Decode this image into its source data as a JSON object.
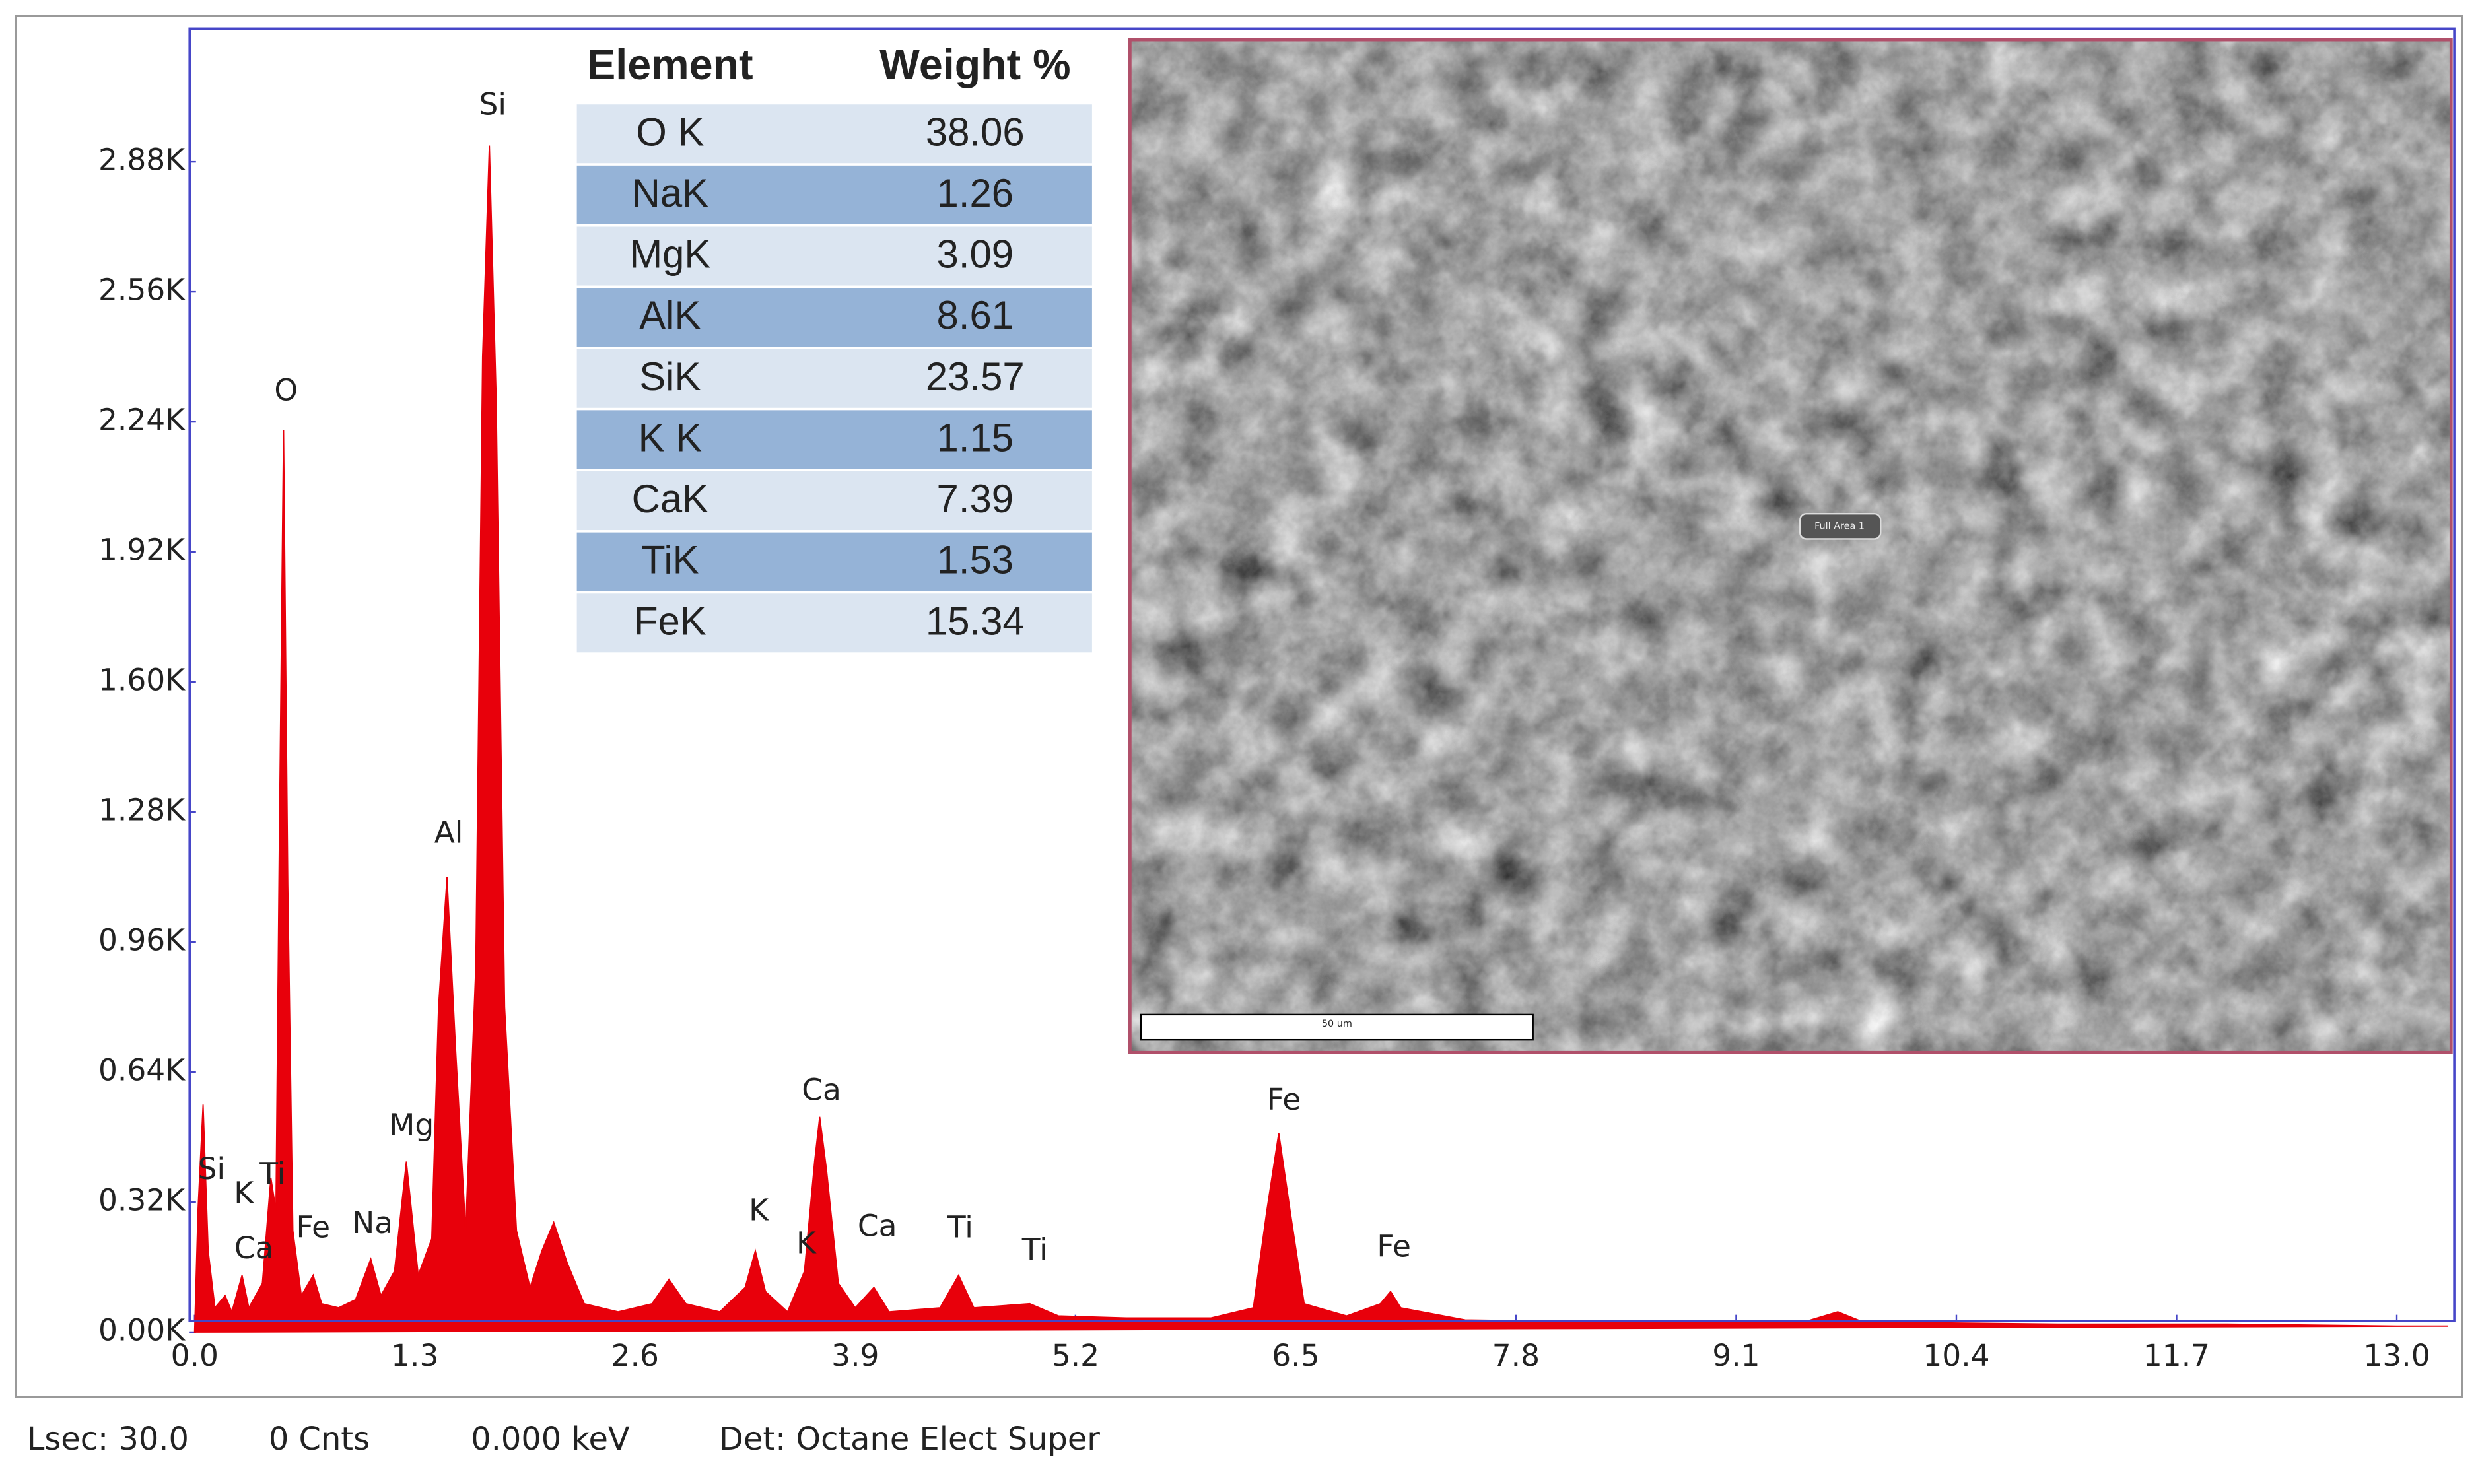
{
  "chart_data": {
    "type": "area",
    "x": [
      0,
      0.02,
      0.05,
      0.08,
      0.12,
      0.18,
      0.22,
      0.28,
      0.32,
      0.4,
      0.45,
      0.48,
      0.5,
      0.525,
      0.55,
      0.58,
      0.63,
      0.7,
      0.75,
      0.85,
      0.95,
      1.04,
      1.1,
      1.18,
      1.25,
      1.32,
      1.4,
      1.44,
      1.49,
      1.54,
      1.6,
      1.66,
      1.7,
      1.74,
      1.78,
      1.83,
      1.9,
      1.98,
      2.05,
      2.12,
      2.2,
      2.3,
      2.5,
      2.7,
      2.8,
      2.9,
      3.1,
      3.25,
      3.31,
      3.37,
      3.5,
      3.6,
      3.66,
      3.69,
      3.73,
      3.8,
      3.9,
      4.01,
      4.1,
      4.4,
      4.51,
      4.6,
      4.93,
      5.1,
      5.5,
      6,
      6.25,
      6.33,
      6.4,
      6.47,
      6.55,
      6.8,
      7,
      7.06,
      7.12,
      7.5,
      8.5,
      9.5,
      9.7,
      9.85,
      11,
      12,
      13,
      13.3
    ],
    "values": [
      0,
      300,
      560,
      200,
      60,
      90,
      50,
      140,
      60,
      120,
      380,
      300,
      1200,
      2220,
      1100,
      250,
      90,
      140,
      70,
      60,
      80,
      180,
      90,
      150,
      420,
      140,
      230,
      800,
      1120,
      700,
      250,
      900,
      2400,
      2920,
      2300,
      800,
      250,
      110,
      200,
      270,
      170,
      70,
      50,
      70,
      130,
      70,
      50,
      110,
      200,
      100,
      50,
      150,
      420,
      530,
      400,
      120,
      60,
      110,
      50,
      60,
      140,
      60,
      70,
      40,
      35,
      35,
      60,
      300,
      490,
      290,
      70,
      40,
      70,
      100,
      60,
      30,
      25,
      25,
      50,
      25,
      20,
      20,
      15,
      15
    ],
    "color": "#e8000b",
    "xlim": [
      -0.02,
      13.33
    ],
    "ylim": [
      0,
      3200
    ],
    "xticks": [
      {
        "value": 0,
        "label": "0.0"
      },
      1.3,
      2.6,
      3.9,
      5.2,
      6.5,
      7.8,
      9.1,
      10.4,
      11.7,
      {
        "value": 13,
        "label": "13.0"
      }
    ],
    "yticks": [
      {
        "value": 0,
        "label": "0.00K"
      },
      {
        "value": 320,
        "label": "0.32K"
      },
      {
        "value": 640,
        "label": "0.64K"
      },
      {
        "value": 960,
        "label": "0.96K"
      },
      {
        "value": 1280,
        "label": "1.28K"
      },
      {
        "value": 1600,
        "label": "1.60K"
      },
      {
        "value": 1920,
        "label": "1.92K"
      },
      {
        "value": 2240,
        "label": "2.24K"
      },
      {
        "value": 2560,
        "label": "2.56K"
      },
      {
        "value": 2880,
        "label": "2.88K"
      }
    ],
    "annotations": [
      {
        "text": "Si",
        "x": 1.76,
        "y": 3017
      },
      {
        "text": "O",
        "x": 0.54,
        "y": 2313
      },
      {
        "text": "Al",
        "x": 1.5,
        "y": 1225
      },
      {
        "text": "Mg",
        "x": 1.28,
        "y": 505
      },
      {
        "text": "Na",
        "x": 1.05,
        "y": 264
      },
      {
        "text": "Fe",
        "x": 0.7,
        "y": 253
      },
      {
        "text": "Ca",
        "x": 0.35,
        "y": 202
      },
      {
        "text": "K",
        "x": 0.29,
        "y": 338
      },
      {
        "text": "Si",
        "x": 0.1,
        "y": 397
      },
      {
        "text": "Ti",
        "x": 0.46,
        "y": 385
      },
      {
        "text": "K",
        "x": 3.33,
        "y": 296
      },
      {
        "text": "K",
        "x": 3.61,
        "y": 214
      },
      {
        "text": "Ca",
        "x": 3.7,
        "y": 591
      },
      {
        "text": "Ca",
        "x": 4.03,
        "y": 257
      },
      {
        "text": "Ti",
        "x": 4.52,
        "y": 253
      },
      {
        "text": "Ti",
        "x": 4.96,
        "y": 198
      },
      {
        "text": "Fe",
        "x": 6.43,
        "y": 568
      },
      {
        "text": "Fe",
        "x": 7.08,
        "y": 206
      }
    ]
  },
  "table": {
    "header": [
      "Element",
      "Weight %"
    ],
    "rows": [
      [
        "O K",
        38.06
      ],
      [
        "NaK",
        1.26
      ],
      [
        "MgK",
        3.09
      ],
      [
        "AlK",
        8.61
      ],
      [
        "SiK",
        23.57
      ],
      [
        "K K",
        1.15
      ],
      [
        "CaK",
        7.39
      ],
      [
        "TiK",
        1.53
      ],
      [
        "FeK",
        15.34
      ]
    ]
  },
  "image": {
    "scale_bar": "50 um",
    "area_label": "Full Area 1"
  },
  "status": [
    "Lsec: 30.0",
    "0 Cnts",
    "0.000 keV",
    "Det: Octane Elect Super"
  ]
}
